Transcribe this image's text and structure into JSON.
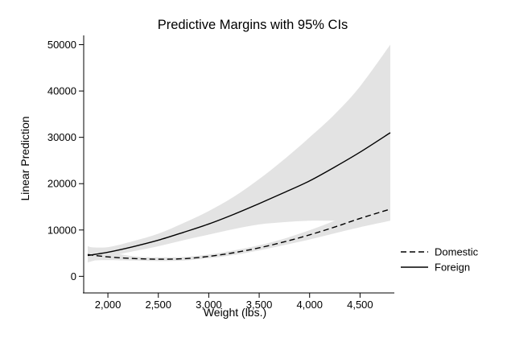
{
  "chart_data": {
    "type": "line",
    "title": "Predictive Margins with 95% CIs",
    "xlabel": "Weight (lbs.)",
    "ylabel": "Linear Prediction",
    "xlim": [
      1760,
      4840
    ],
    "ylim": [
      -1500,
      52000
    ],
    "x_ticks": [
      2000,
      2500,
      3000,
      3500,
      4000,
      4500
    ],
    "x_tick_labels": [
      "2,000",
      "2,500",
      "3,000",
      "3,500",
      "4,000",
      "4,500"
    ],
    "y_ticks": [
      0,
      10000,
      20000,
      30000,
      40000,
      50000
    ],
    "y_tick_labels": [
      "0",
      "10000",
      "20000",
      "30000",
      "40000",
      "50000"
    ],
    "grid": false,
    "legend_position": "right",
    "x": [
      1800,
      2000,
      2250,
      2500,
      2750,
      3000,
      3250,
      3500,
      3750,
      4000,
      4250,
      4500,
      4800
    ],
    "series": [
      {
        "name": "Domestic",
        "style": "dashed",
        "color": "#000000",
        "values": [
          4700,
          4200,
          3850,
          3700,
          3800,
          4300,
          5100,
          6150,
          7450,
          8950,
          10650,
          12500,
          14500
        ],
        "ci_lower": [
          3400,
          3500,
          3400,
          3300,
          3400,
          3900,
          4600,
          5600,
          6750,
          7950,
          9300,
          10600,
          12000
        ],
        "ci_upper": [
          6500,
          5300,
          4350,
          4100,
          4200,
          4700,
          5600,
          6700,
          8150,
          9950,
          12000,
          14300,
          17000
        ]
      },
      {
        "name": "Foreign",
        "style": "solid",
        "color": "#000000",
        "values": [
          4500,
          5200,
          6400,
          7800,
          9500,
          11300,
          13400,
          15700,
          18100,
          20600,
          23600,
          26800,
          31000
        ],
        "ci_lower": [
          3000,
          4200,
          5400,
          6500,
          7800,
          9000,
          10200,
          11200,
          11700,
          12000,
          12000,
          12100,
          12400
        ],
        "ci_upper": [
          6300,
          6300,
          7600,
          9200,
          11500,
          14100,
          17200,
          21000,
          25300,
          30000,
          35000,
          41000,
          50000
        ]
      }
    ],
    "ci_color": "#e3e3e3"
  }
}
